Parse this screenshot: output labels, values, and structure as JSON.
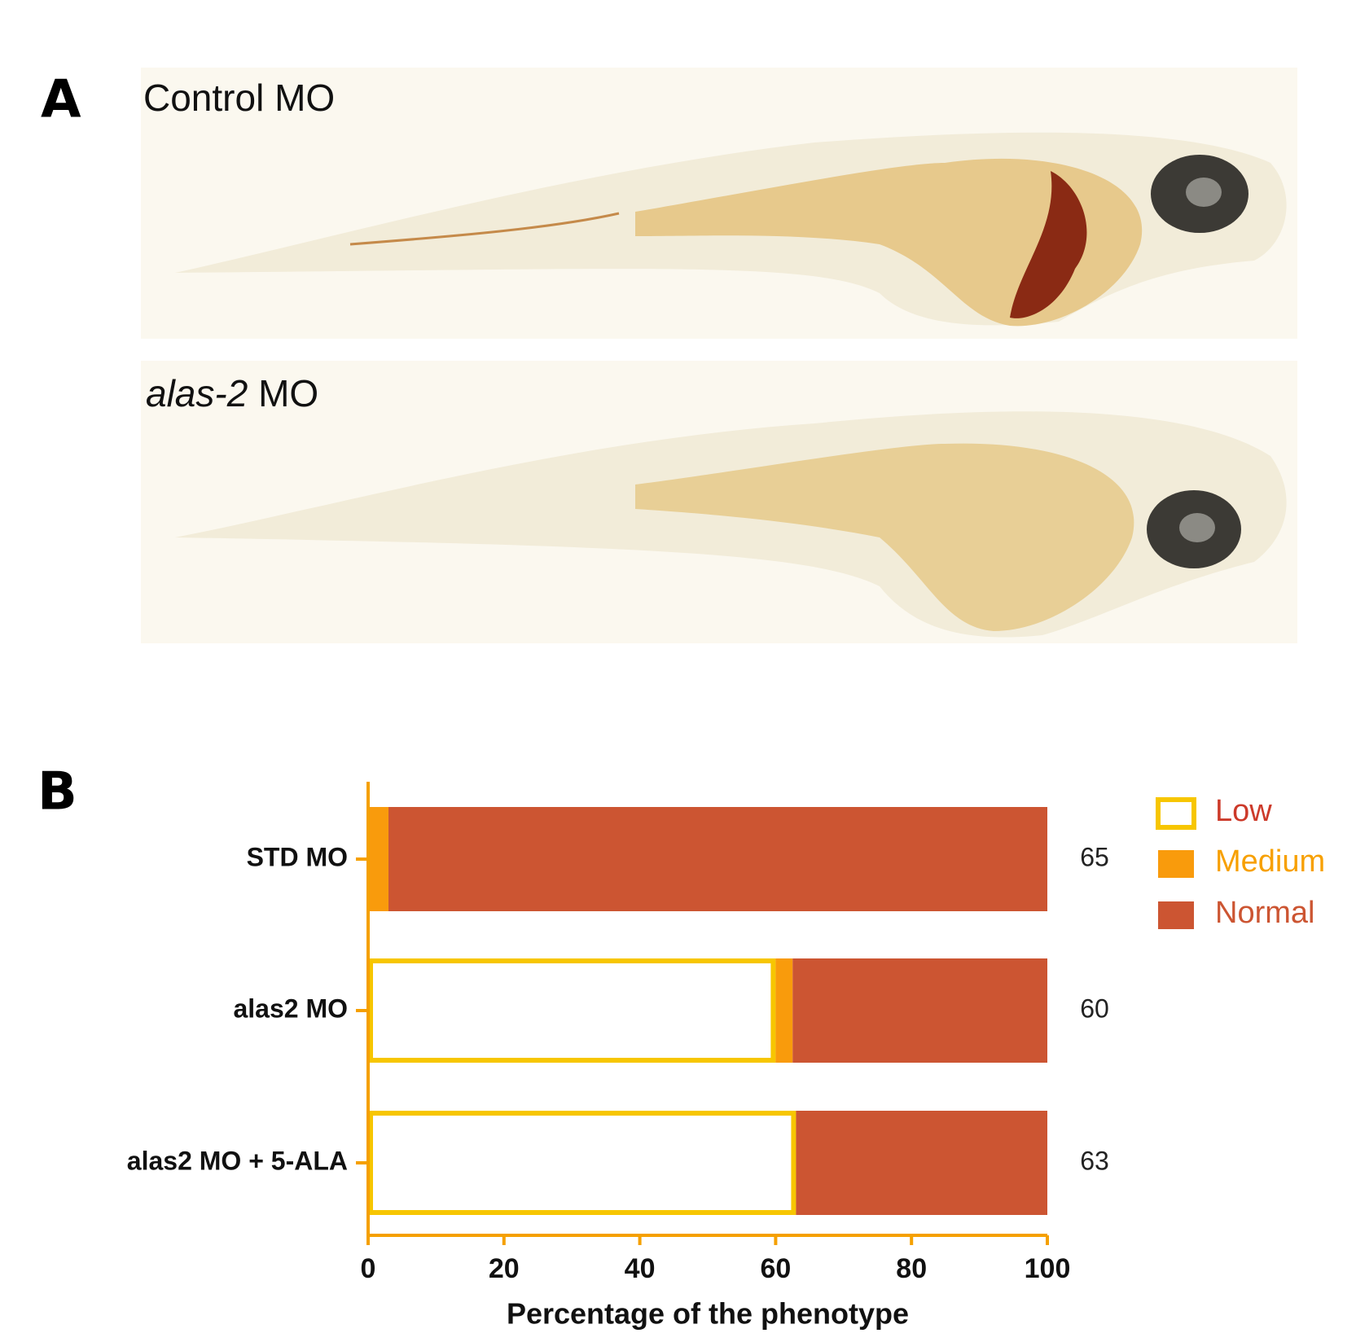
{
  "panels": [
    {
      "letter": "A",
      "label": [
        "Control MO"
      ]
    },
    {
      "label": [
        "alas-2",
        " MO"
      ]
    }
  ],
  "chart_data": {
    "type": "stacked-barh",
    "letter": "B",
    "categories": [
      "STD MO",
      "alas2 MO",
      "alas2 MO + 5-ALA"
    ],
    "series": [
      {
        "name": "Low",
        "color": "#f7c600",
        "fill": "#ffffff",
        "text_color": "#cc3a2a",
        "values": [
          0,
          60,
          63
        ]
      },
      {
        "name": "Medium",
        "color": "#f99b0c",
        "text_color": "#f7a000",
        "values": [
          3,
          2.5,
          0
        ]
      },
      {
        "name": "Normal",
        "color": "#cc5532",
        "text_color": "#cc5532",
        "values": [
          97,
          37.5,
          37
        ]
      }
    ],
    "counts": [
      65,
      60,
      63
    ],
    "xlabel": "Percentage of the phenotype",
    "xlim": [
      0,
      100
    ],
    "xticks": [
      0,
      20,
      40,
      60,
      80,
      100
    ],
    "axis_color": "#f5a000",
    "legend": "right"
  }
}
